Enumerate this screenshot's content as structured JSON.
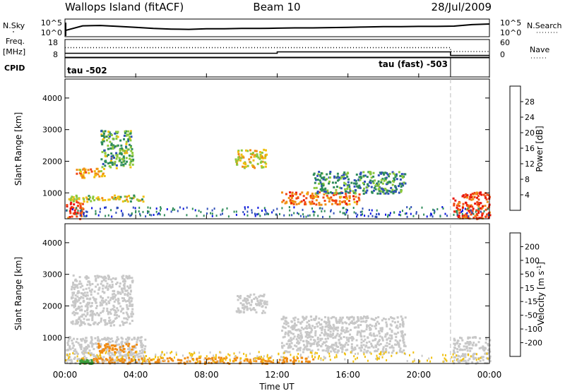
{
  "header": {
    "station": "Wallops Island (fitACF)",
    "beam": "Beam 10",
    "date": "28/Jul/2009"
  },
  "chart_data": [
    {
      "type": "line",
      "panel": "noise",
      "left_label": "N.Sky",
      "right_label": "N.Search",
      "left_ticks": [
        "10^5",
        "10^0"
      ],
      "right_ticks": [
        "10^5",
        "10^0"
      ],
      "x_range": [
        0,
        24
      ],
      "series": [
        {
          "values_log10": [
            1.6,
            3.2,
            3.3,
            3.0,
            2.7,
            2.3,
            2.1,
            2.0,
            2.2,
            2.2,
            2.3,
            2.3,
            2.4,
            2.5,
            2.5,
            2.6,
            2.7,
            2.8,
            2.9,
            2.9,
            3.0,
            3.0,
            3.1,
            3.6,
            3.8
          ]
        }
      ]
    },
    {
      "type": "line",
      "panel": "frequency",
      "left_label_top": "Freq.",
      "left_label_bottom": "[MHz]",
      "left_ticks": [
        "18",
        "8"
      ],
      "right_label": "Nave",
      "right_ticks": [
        "60",
        "0"
      ],
      "series": [
        {
          "style": "solid",
          "x": [
            0,
            12,
            12,
            21.8,
            21.8,
            24
          ],
          "y": [
            10.2,
            10.2,
            11.0,
            11.0,
            9.0,
            9.0
          ]
        },
        {
          "style": "dotted",
          "x": [
            0,
            21.8,
            21.8,
            24
          ],
          "y": [
            13.4,
            13.4,
            11.2,
            11.2
          ]
        }
      ]
    },
    {
      "type": "table",
      "panel": "cpid",
      "label": "CPID",
      "segments": [
        {
          "label": "tau -502",
          "start": 0,
          "end": 21.8
        },
        {
          "label": "tau (fast) -503",
          "start": 21.8,
          "end": 24
        }
      ]
    },
    {
      "type": "heatmap",
      "panel": "power",
      "ylabel": "Slant Range [km]",
      "yticks": [
        "4000",
        "3000",
        "2000",
        "1000"
      ],
      "ylim": [
        180,
        4600
      ],
      "colorbar_label": "Power [dB]",
      "colorbar_ticks": [
        "28",
        "24",
        "20",
        "16",
        "12",
        "8",
        "4"
      ],
      "palette": [
        "#0a14e0",
        "#3050b8",
        "#2e8c5a",
        "#8cc83c",
        "#f0c010",
        "#f08c14",
        "#f04614",
        "#e8140c"
      ],
      "echo_regions": [
        {
          "x": [
            0.05,
            1.0
          ],
          "y": [
            200,
            800
          ],
          "value": 27
        },
        {
          "x": [
            0.4,
            2.2
          ],
          "y": [
            1500,
            1800
          ],
          "value": 20
        },
        {
          "x": [
            2.0,
            3.8
          ],
          "y": [
            1800,
            3000
          ],
          "value": 12
        },
        {
          "x": [
            0.1,
            4.5
          ],
          "y": [
            750,
            950
          ],
          "value": 16
        },
        {
          "x": [
            9.6,
            11.4
          ],
          "y": [
            1800,
            2400
          ],
          "value": 18
        },
        {
          "x": [
            12.2,
            16.6
          ],
          "y": [
            650,
            1050
          ],
          "value": 24
        },
        {
          "x": [
            14.0,
            19.2
          ],
          "y": [
            1000,
            1700
          ],
          "value": 10
        },
        {
          "x": [
            21.9,
            24.0
          ],
          "y": [
            200,
            1050
          ],
          "value": 27
        }
      ]
    },
    {
      "type": "heatmap",
      "panel": "velocity",
      "xlabel": "Time UT",
      "xticks": [
        "00:00",
        "04:00",
        "08:00",
        "12:00",
        "16:00",
        "20:00",
        "00:00"
      ],
      "x_range": [
        0,
        24
      ],
      "ylabel": "Slant Range [km]",
      "yticks": [
        "4000",
        "3000",
        "2000",
        "1000"
      ],
      "ylim": [
        180,
        4600
      ],
      "colorbar_label": "Velocity [m s^-1]",
      "colorbar_ticks": [
        "200",
        "100",
        "50",
        "15",
        "-15",
        "-50",
        "-100",
        "-200"
      ],
      "palette": [
        "#1414d2",
        "#3c50b4",
        "#3ca03c",
        "#78d23c",
        "#c8c8c8",
        "#f0c010",
        "#f08c14",
        "#f04614",
        "#e8140c"
      ],
      "echo_regions": [
        {
          "x": [
            0.05,
            4.5
          ],
          "y": [
            200,
            1050
          ],
          "value": 0
        },
        {
          "x": [
            1.8,
            4.0
          ],
          "y": [
            550,
            850
          ],
          "value": -40
        },
        {
          "x": [
            0.3,
            3.8
          ],
          "y": [
            1400,
            3000
          ],
          "value": 0
        },
        {
          "x": [
            9.6,
            11.4
          ],
          "y": [
            1800,
            2400
          ],
          "value": 0
        },
        {
          "x": [
            12.2,
            19.2
          ],
          "y": [
            550,
            1700
          ],
          "value": 0
        },
        {
          "x": [
            21.9,
            24.0
          ],
          "y": [
            200,
            1050
          ],
          "value": 0
        },
        {
          "x": [
            0.8,
            14.0
          ],
          "y": [
            200,
            400
          ],
          "value": -40
        },
        {
          "x": [
            0.8,
            1.5
          ],
          "y": [
            200,
            320
          ],
          "value": 60
        }
      ]
    }
  ]
}
